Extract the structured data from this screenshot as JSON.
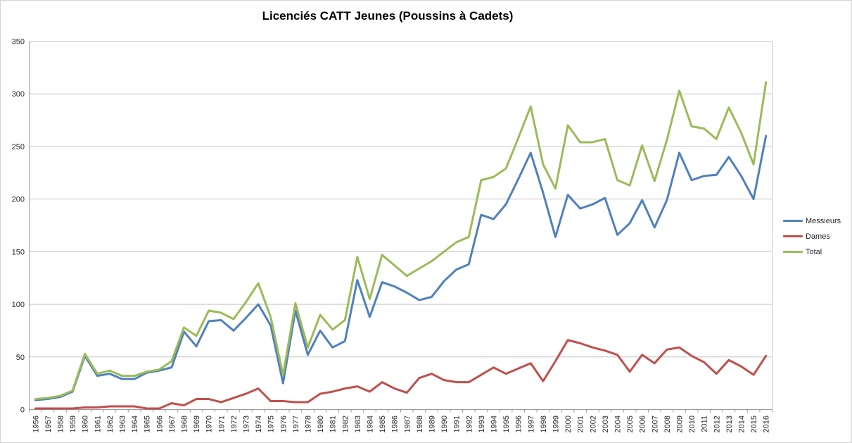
{
  "title": "Licenciés CATT Jeunes (Poussins à Cadets)",
  "legend": {
    "position": "right",
    "items": [
      {
        "label": "Messieurs",
        "color": "#4F81BD"
      },
      {
        "label": "Dames",
        "color": "#C0504D"
      },
      {
        "label": "Total",
        "color": "#9BBB59"
      }
    ]
  },
  "colors": {
    "series_messieurs": "#4F81BD",
    "series_dames": "#C0504D",
    "series_total": "#9BBB59",
    "gridline": "#C6C6C6",
    "axis_line": "#9A9A9A",
    "tick_label": "#262626",
    "chart_border": "#D5D5D5",
    "background": "#FFFFFF"
  },
  "chart_data": {
    "type": "line",
    "title": "Licenciés CATT Jeunes (Poussins à Cadets)",
    "xlabel": "",
    "ylabel": "",
    "ylim": [
      0,
      350
    ],
    "ytick_step": 50,
    "grid": true,
    "legend_position": "right",
    "note_missing_year": "1979 absent from category axis",
    "categories": [
      "1956",
      "1957",
      "1958",
      "1959",
      "1960",
      "1961",
      "1962",
      "1963",
      "1964",
      "1965",
      "1966",
      "1967",
      "1968",
      "1969",
      "1970",
      "1971",
      "1972",
      "1973",
      "1974",
      "1975",
      "1976",
      "1977",
      "1978",
      "1980",
      "1981",
      "1982",
      "1983",
      "1984",
      "1985",
      "1986",
      "1987",
      "1988",
      "1989",
      "1990",
      "1991",
      "1992",
      "1993",
      "1994",
      "1995",
      "1996",
      "1997",
      "1998",
      "1999",
      "2000",
      "2001",
      "2002",
      "2003",
      "2004",
      "2005",
      "2006",
      "2007",
      "2008",
      "2009",
      "2010",
      "2011",
      "2012",
      "2013",
      "2014",
      "2015",
      "2016"
    ],
    "series": [
      {
        "name": "Messieurs",
        "color": "#4F81BD",
        "values": [
          9,
          10,
          12,
          17,
          51,
          32,
          34,
          29,
          29,
          35,
          37,
          40,
          74,
          60,
          84,
          85,
          75,
          87,
          100,
          80,
          25,
          94,
          52,
          75,
          59,
          65,
          123,
          88,
          121,
          117,
          111,
          104,
          107,
          122,
          133,
          138,
          185,
          181,
          195,
          219,
          244,
          206,
          164,
          204,
          191,
          195,
          201,
          166,
          177,
          199,
          173,
          199,
          244,
          218,
          222,
          223,
          240,
          222,
          200,
          260
        ]
      },
      {
        "name": "Dames",
        "color": "#C0504D",
        "values": [
          1,
          1,
          1,
          1,
          2,
          2,
          3,
          3,
          3,
          1,
          1,
          6,
          4,
          10,
          10,
          7,
          11,
          15,
          20,
          8,
          8,
          7,
          7,
          15,
          17,
          20,
          22,
          17,
          26,
          20,
          16,
          30,
          34,
          28,
          26,
          26,
          33,
          40,
          34,
          39,
          44,
          27,
          46,
          66,
          63,
          59,
          56,
          52,
          36,
          52,
          44,
          57,
          59,
          51,
          45,
          34,
          47,
          41,
          33,
          51
        ]
      },
      {
        "name": "Total",
        "color": "#9BBB59",
        "values": [
          10,
          11,
          13,
          18,
          53,
          34,
          37,
          32,
          32,
          36,
          38,
          46,
          78,
          70,
          94,
          92,
          86,
          102,
          120,
          88,
          33,
          101,
          59,
          90,
          76,
          85,
          145,
          105,
          147,
          137,
          127,
          134,
          141,
          150,
          159,
          164,
          218,
          221,
          229,
          258,
          288,
          233,
          210,
          270,
          254,
          254,
          257,
          218,
          213,
          251,
          217,
          256,
          303,
          269,
          267,
          257,
          287,
          263,
          233,
          311
        ]
      }
    ]
  }
}
